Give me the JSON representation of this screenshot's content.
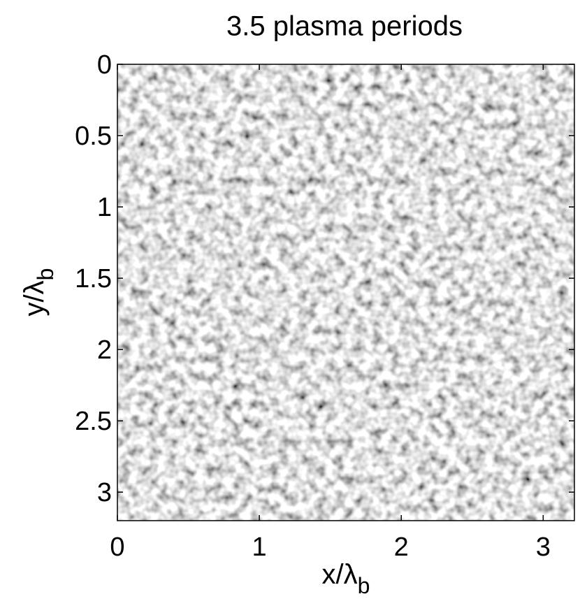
{
  "chart_data": {
    "type": "heatmap",
    "title": "3.5 plasma periods",
    "xlabel": {
      "text": "x/λ",
      "subscript": "b"
    },
    "ylabel": {
      "text": "y/λ",
      "subscript": "b"
    },
    "xlim": [
      0,
      3.22
    ],
    "xticks": [
      0,
      1,
      2,
      3
    ],
    "ylim": [
      0,
      3.2
    ],
    "yticks": [
      0,
      0.5,
      1,
      1.5,
      2,
      2.5,
      3
    ],
    "y_reversed": true,
    "colormap": "gray"
  }
}
